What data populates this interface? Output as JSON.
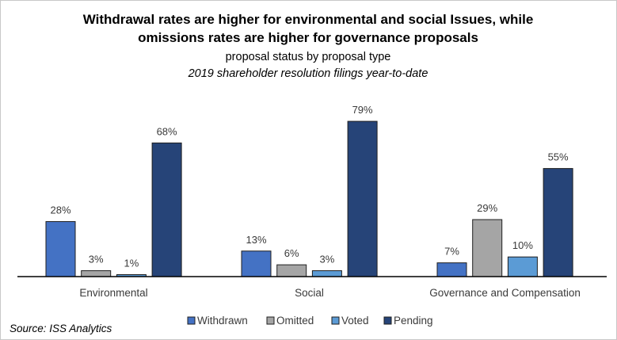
{
  "chart_data": {
    "type": "bar",
    "title_line1": "Withdrawal rates are higher for environmental and social Issues, while",
    "title_line2": "omissions rates are higher for governance proposals",
    "subtitle": "proposal status by proposal type",
    "subtitle2": "2019 shareholder resolution filings year-to-date",
    "categories": [
      "Environmental",
      "Social",
      "Governance and Compensation"
    ],
    "series": [
      {
        "name": "Withdrawn",
        "color": "#4472C4",
        "values": [
          28,
          13,
          7
        ],
        "labels": [
          "28%",
          "13%",
          "7%"
        ]
      },
      {
        "name": "Omitted",
        "color": "#A5A5A5",
        "values": [
          3,
          6,
          29
        ],
        "labels": [
          "3%",
          "6%",
          "29%"
        ]
      },
      {
        "name": "Voted",
        "color": "#5B9BD5",
        "values": [
          1,
          3,
          10
        ],
        "labels": [
          "1%",
          "3%",
          "10%"
        ]
      },
      {
        "name": "Pending",
        "color": "#264478",
        "values": [
          68,
          79,
          55
        ],
        "labels": [
          "68%",
          "79%",
          "55%"
        ]
      }
    ],
    "ylim": [
      0,
      90
    ],
    "grid": false,
    "legend_position": "bottom",
    "source": "Source: ISS Analytics"
  }
}
